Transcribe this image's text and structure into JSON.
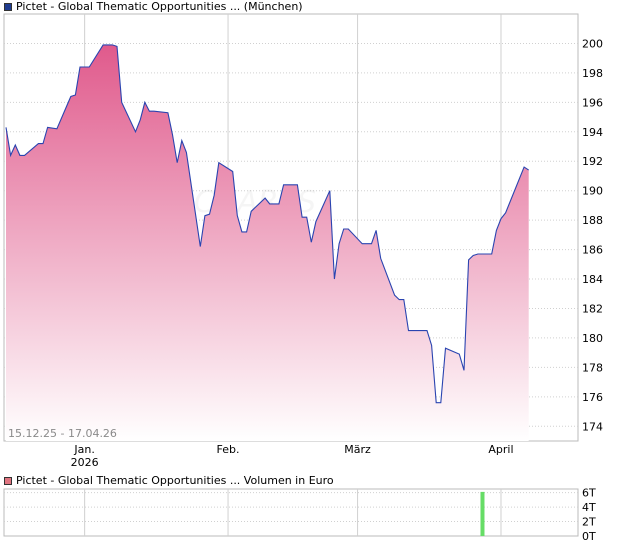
{
  "price_legend": {
    "text": "Pictet - Global Thematic Opportunities ... (München)",
    "color": "#1f3c8f"
  },
  "volume_legend": {
    "text": "Pictet - Global Thematic Opportunities ... Volumen in Euro",
    "color": "#e07480"
  },
  "date_range": "15.12.25 - 17.04.26",
  "watermark": "CHARTS",
  "colors": {
    "line": "#2a44b0",
    "area_top": "#e05a8c",
    "area_bottom": "#ffffff",
    "grid": "#d0d0d0",
    "volume_bar": "#66dd66"
  },
  "chart_data": [
    {
      "type": "area",
      "x_tick_labels": [
        {
          "date": "2026-01-01",
          "label": "Jan.",
          "sub": "2026"
        },
        {
          "date": "2026-02-01",
          "label": "Feb.",
          "sub": ""
        },
        {
          "date": "2026-03-01",
          "label": "März",
          "sub": ""
        },
        {
          "date": "2026-04-01",
          "label": "April",
          "sub": ""
        }
      ],
      "y_ticks": [
        174,
        176,
        178,
        180,
        182,
        184,
        186,
        188,
        190,
        192,
        194,
        196,
        198,
        200
      ],
      "ylim": [
        173,
        202
      ],
      "xlim": [
        "2025-12-15",
        "2026-04-17"
      ],
      "grid": true,
      "series": [
        {
          "points": [
            [
              "2025-12-15",
              194.3
            ],
            [
              "2025-12-16",
              192.4
            ],
            [
              "2025-12-17",
              193.1
            ],
            [
              "2025-12-18",
              192.4
            ],
            [
              "2025-12-19",
              192.4
            ],
            [
              "2025-12-22",
              193.2
            ],
            [
              "2025-12-23",
              193.2
            ],
            [
              "2025-12-24",
              194.3
            ],
            [
              "2025-12-26",
              194.2
            ],
            [
              "2025-12-29",
              196.4
            ],
            [
              "2025-12-30",
              196.5
            ],
            [
              "2025-12-31",
              198.4
            ],
            [
              "2026-01-02",
              198.4
            ],
            [
              "2026-01-05",
              199.9
            ],
            [
              "2026-01-07",
              199.9
            ],
            [
              "2026-01-08",
              199.8
            ],
            [
              "2026-01-09",
              196.0
            ],
            [
              "2026-01-12",
              194.0
            ],
            [
              "2026-01-13",
              194.8
            ],
            [
              "2026-01-14",
              196.0
            ],
            [
              "2026-01-15",
              195.4
            ],
            [
              "2026-01-16",
              195.4
            ],
            [
              "2026-01-19",
              195.3
            ],
            [
              "2026-01-20",
              193.8
            ],
            [
              "2026-01-21",
              191.9
            ],
            [
              "2026-01-22",
              193.4
            ],
            [
              "2026-01-23",
              192.6
            ],
            [
              "2026-01-26",
              186.2
            ],
            [
              "2026-01-27",
              188.3
            ],
            [
              "2026-01-28",
              188.4
            ],
            [
              "2026-01-29",
              189.7
            ],
            [
              "2026-01-30",
              191.9
            ],
            [
              "2026-02-02",
              191.3
            ],
            [
              "2026-02-03",
              188.3
            ],
            [
              "2026-02-04",
              187.2
            ],
            [
              "2026-02-05",
              187.2
            ],
            [
              "2026-02-06",
              188.6
            ],
            [
              "2026-02-09",
              189.5
            ],
            [
              "2026-02-10",
              189.1
            ],
            [
              "2026-02-11",
              189.1
            ],
            [
              "2026-02-12",
              189.1
            ],
            [
              "2026-02-13",
              190.4
            ],
            [
              "2026-02-16",
              190.4
            ],
            [
              "2026-02-17",
              188.2
            ],
            [
              "2026-02-18",
              188.2
            ],
            [
              "2026-02-19",
              186.5
            ],
            [
              "2026-02-20",
              187.9
            ],
            [
              "2026-02-23",
              190.0
            ],
            [
              "2026-02-24",
              184.0
            ],
            [
              "2026-02-25",
              186.4
            ],
            [
              "2026-02-26",
              187.4
            ],
            [
              "2026-02-27",
              187.4
            ],
            [
              "2026-03-02",
              186.4
            ],
            [
              "2026-03-03",
              186.4
            ],
            [
              "2026-03-04",
              186.4
            ],
            [
              "2026-03-05",
              187.3
            ],
            [
              "2026-03-06",
              185.4
            ],
            [
              "2026-03-09",
              182.9
            ],
            [
              "2026-03-10",
              182.6
            ],
            [
              "2026-03-11",
              182.6
            ],
            [
              "2026-03-12",
              180.5
            ],
            [
              "2026-03-13",
              180.5
            ],
            [
              "2026-03-16",
              180.5
            ],
            [
              "2026-03-17",
              179.5
            ],
            [
              "2026-03-18",
              175.6
            ],
            [
              "2026-03-19",
              175.6
            ],
            [
              "2026-03-20",
              179.3
            ],
            [
              "2026-03-23",
              178.9
            ],
            [
              "2026-03-24",
              177.8
            ],
            [
              "2026-03-25",
              185.3
            ],
            [
              "2026-03-26",
              185.6
            ],
            [
              "2026-03-27",
              185.7
            ],
            [
              "2026-03-30",
              185.7
            ],
            [
              "2026-03-31",
              187.3
            ],
            [
              "2026-04-01",
              188.1
            ],
            [
              "2026-04-02",
              188.5
            ],
            [
              "2026-04-06",
              191.6
            ],
            [
              "2026-04-07",
              191.4
            ]
          ]
        }
      ]
    },
    {
      "type": "bar",
      "ylabel": "",
      "y_ticks": [
        "0T",
        "2T",
        "4T",
        "6T"
      ],
      "ylim": [
        0,
        6.5
      ],
      "bars": [
        {
          "date": "2026-03-28",
          "value": 6.1
        }
      ]
    }
  ]
}
